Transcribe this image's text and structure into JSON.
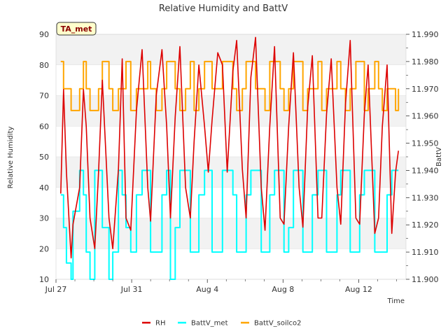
{
  "chart_data": {
    "type": "line",
    "title": "Relative Humidity and BattV",
    "badge": "TA_met",
    "xlabel": "Time",
    "ylabel": "Relative Humidity",
    "y2label": "BattV",
    "xlim": [
      0,
      18.5
    ],
    "ylim": [
      10,
      90
    ],
    "y2lim": [
      11.9,
      11.99
    ],
    "x_ticks": [
      {
        "value": 0,
        "label": "Jul 27"
      },
      {
        "value": 4,
        "label": "Jul 31"
      },
      {
        "value": 8,
        "label": "Aug 4"
      },
      {
        "value": 12,
        "label": "Aug 8"
      },
      {
        "value": 16,
        "label": "Aug 12"
      }
    ],
    "y_ticks": [
      10,
      20,
      30,
      40,
      50,
      60,
      70,
      80,
      90
    ],
    "y2_ticks": [
      "11.900",
      "11.910",
      "11.920",
      "11.930",
      "11.940",
      "11.950",
      "11.960",
      "11.970",
      "11.980",
      "11.990"
    ],
    "bands": [
      [
        20,
        30
      ],
      [
        40,
        50
      ],
      [
        60,
        70
      ],
      [
        80,
        90
      ]
    ],
    "grid": true,
    "legend_position": "bottom",
    "series": [
      {
        "name": "RH",
        "axis": "left",
        "color": "#dd0000",
        "x": [
          0.25,
          0.4,
          0.55,
          0.8,
          0.9,
          1.25,
          1.45,
          1.6,
          1.8,
          2.05,
          2.25,
          2.45,
          2.8,
          3.0,
          3.3,
          3.5,
          3.7,
          3.95,
          4.25,
          4.55,
          4.85,
          5.0,
          5.3,
          5.6,
          5.85,
          6.05,
          6.3,
          6.55,
          6.85,
          7.1,
          7.3,
          7.55,
          7.85,
          8.05,
          8.25,
          8.55,
          8.8,
          9.05,
          9.35,
          9.55,
          9.85,
          10.05,
          10.3,
          10.55,
          10.85,
          11.05,
          11.3,
          11.55,
          11.85,
          12.05,
          12.3,
          12.55,
          12.85,
          13.05,
          13.3,
          13.55,
          13.85,
          14.05,
          14.3,
          14.55,
          14.85,
          15.05,
          15.3,
          15.55,
          15.85,
          16.05,
          16.3,
          16.5,
          16.85,
          17.05,
          17.25,
          17.5,
          17.75,
          17.95,
          18.1
        ],
        "values": [
          38,
          72,
          45,
          17,
          28,
          40,
          72,
          60,
          30,
          20,
          45,
          75,
          30,
          20,
          46,
          82,
          30,
          26,
          65,
          85,
          40,
          29,
          70,
          85,
          60,
          30,
          63,
          86,
          40,
          30,
          55,
          80,
          60,
          45,
          62,
          84,
          80,
          45,
          78,
          88,
          46,
          30,
          76,
          89,
          40,
          26,
          60,
          86,
          30,
          28,
          60,
          84,
          40,
          27,
          66,
          83,
          30,
          30,
          64,
          82,
          40,
          28,
          67,
          88,
          30,
          28,
          64,
          80,
          25,
          30,
          60,
          80,
          25,
          45,
          52
        ]
      },
      {
        "name": "BattV_met",
        "axis": "right",
        "color": "#00ffff",
        "x": [
          0.25,
          0.4,
          0.55,
          0.8,
          0.9,
          1.25,
          1.45,
          1.6,
          1.8,
          2.05,
          2.25,
          2.45,
          2.8,
          3.0,
          3.3,
          3.5,
          3.7,
          3.95,
          4.25,
          4.55,
          4.85,
          5.0,
          5.3,
          5.6,
          5.85,
          6.05,
          6.3,
          6.55,
          6.85,
          7.1,
          7.3,
          7.55,
          7.85,
          8.05,
          8.25,
          8.55,
          8.8,
          9.05,
          9.35,
          9.55,
          9.85,
          10.05,
          10.3,
          10.55,
          10.85,
          11.05,
          11.3,
          11.55,
          11.85,
          12.05,
          12.3,
          12.55,
          12.85,
          13.05,
          13.3,
          13.55,
          13.85,
          14.05,
          14.3,
          14.55,
          14.85,
          15.05,
          15.3,
          15.55,
          15.85,
          16.05,
          16.3,
          16.5,
          16.85,
          17.05,
          17.25,
          17.5,
          17.75,
          17.95,
          18.1
        ],
        "values": [
          11.931,
          11.919,
          11.906,
          11.9,
          11.925,
          11.94,
          11.931,
          11.91,
          11.9,
          11.94,
          11.94,
          11.919,
          11.9,
          11.91,
          11.94,
          11.931,
          11.919,
          11.91,
          11.931,
          11.94,
          11.94,
          11.91,
          11.91,
          11.931,
          11.94,
          11.9,
          11.919,
          11.94,
          11.94,
          11.91,
          11.91,
          11.931,
          11.94,
          11.94,
          11.91,
          11.91,
          11.94,
          11.94,
          11.931,
          11.91,
          11.91,
          11.931,
          11.94,
          11.94,
          11.91,
          11.91,
          11.931,
          11.94,
          11.94,
          11.91,
          11.919,
          11.94,
          11.94,
          11.91,
          11.91,
          11.931,
          11.94,
          11.94,
          11.91,
          11.91,
          11.931,
          11.94,
          11.94,
          11.91,
          11.91,
          11.931,
          11.94,
          11.94,
          11.91,
          11.91,
          11.91,
          11.931,
          11.94,
          11.94,
          11.94
        ]
      },
      {
        "name": "BattV_soilco2",
        "axis": "right",
        "color": "#ffa500",
        "x": [
          0.25,
          0.4,
          0.55,
          0.8,
          0.9,
          1.25,
          1.45,
          1.6,
          1.8,
          2.05,
          2.25,
          2.45,
          2.8,
          3.0,
          3.3,
          3.5,
          3.7,
          3.95,
          4.25,
          4.55,
          4.85,
          5.0,
          5.3,
          5.6,
          5.85,
          6.05,
          6.3,
          6.55,
          6.85,
          7.1,
          7.3,
          7.55,
          7.85,
          8.05,
          8.25,
          8.55,
          8.8,
          9.05,
          9.35,
          9.55,
          9.85,
          10.05,
          10.3,
          10.55,
          10.85,
          11.05,
          11.3,
          11.55,
          11.85,
          12.05,
          12.3,
          12.55,
          12.85,
          13.05,
          13.3,
          13.55,
          13.85,
          14.05,
          14.3,
          14.55,
          14.85,
          15.05,
          15.3,
          15.55,
          15.85,
          16.05,
          16.3,
          16.5,
          16.85,
          17.05,
          17.25,
          17.5,
          17.75,
          17.95,
          18.1
        ],
        "values": [
          11.98,
          11.97,
          11.97,
          11.962,
          11.962,
          11.97,
          11.98,
          11.97,
          11.962,
          11.962,
          11.97,
          11.98,
          11.97,
          11.962,
          11.97,
          11.97,
          11.98,
          11.962,
          11.97,
          11.97,
          11.98,
          11.97,
          11.962,
          11.97,
          11.98,
          11.98,
          11.97,
          11.962,
          11.97,
          11.98,
          11.962,
          11.97,
          11.98,
          11.98,
          11.97,
          11.97,
          11.98,
          11.98,
          11.97,
          11.962,
          11.97,
          11.98,
          11.98,
          11.97,
          11.97,
          11.962,
          11.98,
          11.98,
          11.97,
          11.962,
          11.97,
          11.98,
          11.98,
          11.962,
          11.97,
          11.97,
          11.98,
          11.962,
          11.97,
          11.97,
          11.98,
          11.97,
          11.962,
          11.97,
          11.98,
          11.98,
          11.962,
          11.97,
          11.98,
          11.97,
          11.962,
          11.97,
          11.97,
          11.962,
          11.97
        ]
      }
    ]
  }
}
